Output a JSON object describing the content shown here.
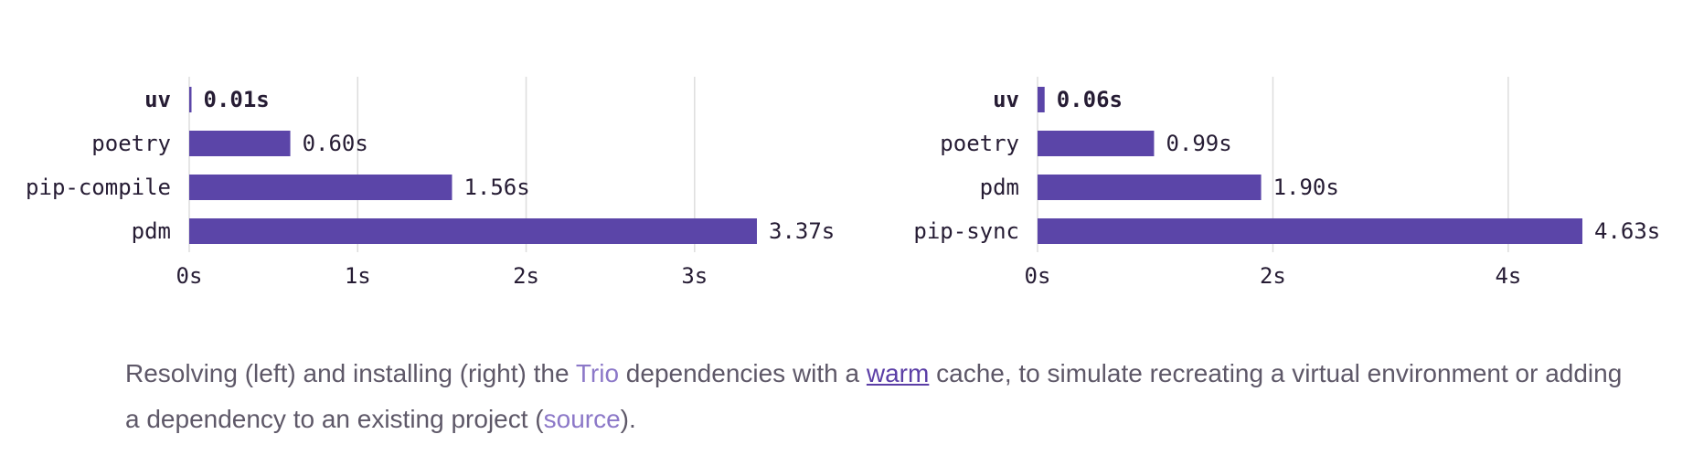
{
  "colors": {
    "bar": "#5b45a8",
    "grid": "#dddddd",
    "text": "#261c34",
    "caption": "#5e5868",
    "link_light": "#8c78c8",
    "link_dark": "#5b3ea6"
  },
  "chart_data": [
    {
      "type": "bar",
      "orientation": "horizontal",
      "categories": [
        "uv",
        "poetry",
        "pip-compile",
        "pdm"
      ],
      "values": [
        0.01,
        0.6,
        1.56,
        3.37
      ],
      "value_labels": [
        "0.01s",
        "0.60s",
        "1.56s",
        "3.37s"
      ],
      "highlight": "uv",
      "xticks": [
        0,
        1,
        2,
        3
      ],
      "xtick_labels": [
        "0s",
        "1s",
        "2s",
        "3s"
      ],
      "xlim": [
        0,
        3.37
      ],
      "grid": true
    },
    {
      "type": "bar",
      "orientation": "horizontal",
      "categories": [
        "uv",
        "poetry",
        "pdm",
        "pip-sync"
      ],
      "values": [
        0.06,
        0.99,
        1.9,
        4.63
      ],
      "value_labels": [
        "0.06s",
        "0.99s",
        "1.90s",
        "4.63s"
      ],
      "highlight": "uv",
      "xticks": [
        0,
        2,
        4
      ],
      "xtick_labels": [
        "0s",
        "2s",
        "4s"
      ],
      "xlim": [
        0,
        4.63
      ],
      "grid": true
    }
  ],
  "caption": {
    "t1": "Resolving (left) and installing (right) the ",
    "link1": "Trio",
    "t2": " dependencies with a ",
    "link2": "warm",
    "t3": " cache, to simulate recreating a virtual environment or adding a dependency to an existing project (",
    "link3": "source",
    "t4": ")."
  }
}
